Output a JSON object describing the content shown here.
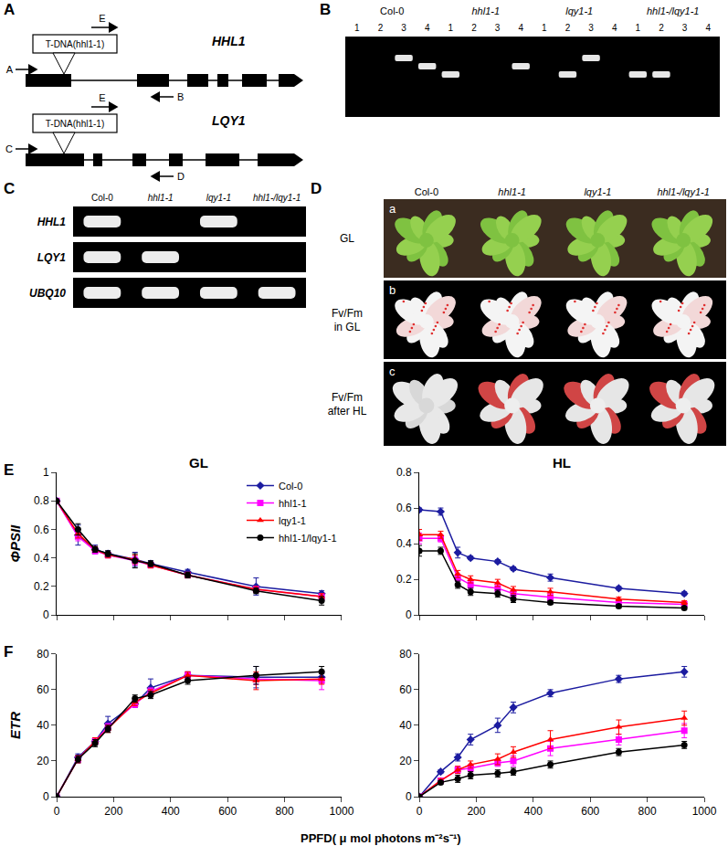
{
  "panels": {
    "A": {
      "label": "A",
      "genes": [
        {
          "name": "HHL1",
          "tdna": "T-DNA(hhl1-1)",
          "primers": [
            "A",
            "B",
            "E"
          ]
        },
        {
          "name": "LQY1",
          "tdna": "T-DNA(hhl1-1)",
          "primers": [
            "C",
            "D",
            "E"
          ]
        }
      ]
    },
    "B": {
      "label": "B",
      "lanes": [
        1,
        2,
        3,
        4
      ],
      "groups": [
        {
          "name": "Col-0",
          "bands": [
            3,
            4
          ]
        },
        {
          "name": "hhl1-1",
          "bands": [
            1,
            4
          ]
        },
        {
          "name": "lqy1-1",
          "bands": [
            2,
            3
          ]
        },
        {
          "name": "hhl1-/lqy1-1",
          "bands": [
            1,
            2
          ]
        }
      ]
    },
    "C": {
      "label": "C",
      "columns": [
        "Col-0",
        "hhl1-1",
        "lqy1-1",
        "hhl1-/lqy1-1"
      ],
      "rows": [
        {
          "name": "HHL1",
          "present": [
            true,
            false,
            true,
            false
          ]
        },
        {
          "name": "LQY1",
          "present": [
            true,
            true,
            false,
            false
          ]
        },
        {
          "name": "UBQ10",
          "present": [
            true,
            true,
            true,
            true
          ]
        }
      ]
    },
    "D": {
      "label": "D",
      "columns": [
        "Col-0",
        "hhl1-1",
        "lqy1-1",
        "hhl1-/lqy1-1"
      ],
      "rows": [
        {
          "letter": "a",
          "label": [
            "GL"
          ]
        },
        {
          "letter": "b",
          "label": [
            "Fv/Fm",
            "in GL"
          ]
        },
        {
          "letter": "c",
          "label": [
            "Fv/Fm",
            "after HL"
          ]
        }
      ]
    }
  },
  "figure": {
    "x_label": "PPFD( μ mol photons m⁻²s⁻¹)"
  },
  "chart_data": [
    {
      "panel": "E",
      "type": "line",
      "title": "GL",
      "ylabel": "ΦPSII",
      "x": [
        0,
        75,
        135,
        180,
        275,
        330,
        460,
        700,
        930
      ],
      "xlim": [
        0,
        1000
      ],
      "xticks": [
        0,
        200,
        400,
        600,
        800,
        1000
      ],
      "ylim": [
        0,
        1
      ],
      "yticks": [
        0,
        0.2,
        0.4,
        0.6,
        0.8,
        1
      ],
      "grid": false,
      "legend": "upper right",
      "tick_labels": "y",
      "series": [
        {
          "name": "Col-0",
          "color": "#1c1ca0",
          "marker": "diamond",
          "line_style": "solid",
          "values": [
            0.8,
            0.56,
            0.46,
            0.43,
            0.39,
            0.36,
            0.3,
            0.2,
            0.15
          ],
          "errors": [
            0.01,
            0.07,
            0.03,
            0.02,
            0.05,
            0.02,
            0.02,
            0.06,
            0.02
          ]
        },
        {
          "name": "hhl1-1",
          "color": "#ff00ff",
          "marker": "square",
          "line_style": "solid",
          "values": [
            0.8,
            0.55,
            0.45,
            0.42,
            0.38,
            0.35,
            0.28,
            0.18,
            0.13
          ],
          "errors": [
            0.01,
            0.03,
            0.02,
            0.02,
            0.03,
            0.02,
            0.02,
            0.02,
            0.02
          ]
        },
        {
          "name": "lqy1-1",
          "color": "#ff0000",
          "marker": "triangle",
          "line_style": "solid",
          "values": [
            0.8,
            0.57,
            0.46,
            0.42,
            0.39,
            0.35,
            0.28,
            0.18,
            0.13
          ],
          "errors": [
            0.01,
            0.03,
            0.02,
            0.02,
            0.03,
            0.02,
            0.02,
            0.02,
            0.02
          ]
        },
        {
          "name": "hhl1-1/lqy1-1",
          "color": "#000000",
          "marker": "circle",
          "line_style": "solid",
          "values": [
            0.8,
            0.6,
            0.46,
            0.43,
            0.38,
            0.36,
            0.28,
            0.17,
            0.1
          ],
          "errors": [
            0.01,
            0.04,
            0.02,
            0.02,
            0.05,
            0.02,
            0.02,
            0.02,
            0.03
          ]
        }
      ]
    },
    {
      "panel": "E",
      "type": "line",
      "title": "HL",
      "x": [
        0,
        75,
        135,
        180,
        275,
        330,
        460,
        700,
        930
      ],
      "xlim": [
        0,
        1000
      ],
      "xticks": [
        0,
        200,
        400,
        600,
        800,
        1000
      ],
      "ylim": [
        0,
        0.8
      ],
      "yticks": [
        0,
        0.2,
        0.4,
        0.6,
        0.8
      ],
      "grid": false,
      "tick_labels": "y",
      "series": [
        {
          "name": "Col-0",
          "color": "#1c1ca0",
          "marker": "diamond",
          "line_style": "solid",
          "values": [
            0.59,
            0.58,
            0.35,
            0.32,
            0.3,
            0.26,
            0.21,
            0.15,
            0.12
          ],
          "errors": [
            0.01,
            0.02,
            0.03,
            0.01,
            0.01,
            0.01,
            0.02,
            0.01,
            0.01
          ]
        },
        {
          "name": "hhl1-1",
          "color": "#ff00ff",
          "marker": "square",
          "line_style": "solid",
          "values": [
            0.43,
            0.43,
            0.21,
            0.17,
            0.15,
            0.12,
            0.1,
            0.07,
            0.06
          ],
          "errors": [
            0.03,
            0.02,
            0.02,
            0.02,
            0.02,
            0.02,
            0.02,
            0.01,
            0.01
          ]
        },
        {
          "name": "lqy1-1",
          "color": "#ff0000",
          "marker": "triangle",
          "line_style": "solid",
          "values": [
            0.45,
            0.45,
            0.23,
            0.2,
            0.18,
            0.14,
            0.13,
            0.09,
            0.07
          ],
          "errors": [
            0.03,
            0.02,
            0.02,
            0.02,
            0.02,
            0.02,
            0.02,
            0.01,
            0.01
          ]
        },
        {
          "name": "hhl1-1/lqy1-1",
          "color": "#000000",
          "marker": "circle",
          "line_style": "solid",
          "values": [
            0.36,
            0.36,
            0.17,
            0.13,
            0.12,
            0.09,
            0.07,
            0.05,
            0.04
          ],
          "errors": [
            0.03,
            0.02,
            0.02,
            0.02,
            0.02,
            0.02,
            0.01,
            0.01,
            0.01
          ]
        }
      ]
    },
    {
      "panel": "F",
      "type": "line",
      "ylabel": "ETR",
      "x": [
        0,
        75,
        135,
        180,
        275,
        330,
        460,
        700,
        930
      ],
      "xlim": [
        0,
        1000
      ],
      "xticks": [
        0,
        200,
        400,
        600,
        800,
        1000
      ],
      "ylim": [
        0,
        80
      ],
      "yticks": [
        0,
        20,
        40,
        60,
        80
      ],
      "grid": false,
      "series": [
        {
          "name": "Col-0",
          "color": "#1c1ca0",
          "marker": "diamond",
          "line_style": "solid",
          "values": [
            0,
            22,
            31,
            41,
            52,
            61,
            68,
            67,
            67
          ],
          "errors": [
            0,
            2,
            2,
            4,
            2,
            5,
            2,
            6,
            2
          ]
        },
        {
          "name": "hhl1-1",
          "color": "#ff00ff",
          "marker": "square",
          "line_style": "solid",
          "values": [
            0,
            21,
            31,
            39,
            52,
            59,
            68,
            66,
            65
          ],
          "errors": [
            0,
            2,
            2,
            2,
            2,
            2,
            2,
            3,
            5
          ]
        },
        {
          "name": "lqy1-1",
          "color": "#ff0000",
          "marker": "triangle",
          "line_style": "solid",
          "values": [
            0,
            21,
            31,
            38,
            53,
            58,
            68,
            65,
            66
          ],
          "errors": [
            0,
            2,
            2,
            2,
            2,
            2,
            2,
            5,
            3
          ]
        },
        {
          "name": "hhl1-1/lqy1-1",
          "color": "#000000",
          "marker": "circle",
          "line_style": "solid",
          "values": [
            0,
            21,
            30,
            38,
            55,
            57,
            65,
            68,
            70
          ],
          "errors": [
            0,
            2,
            2,
            2,
            2,
            2,
            2,
            5,
            3
          ]
        }
      ]
    },
    {
      "panel": "F",
      "type": "line",
      "x": [
        0,
        75,
        135,
        180,
        275,
        330,
        460,
        700,
        930
      ],
      "xlim": [
        0,
        1000
      ],
      "xticks": [
        0,
        200,
        400,
        600,
        800,
        1000
      ],
      "ylim": [
        0,
        80
      ],
      "yticks": [
        0,
        20,
        40,
        60,
        80
      ],
      "grid": false,
      "series": [
        {
          "name": "Col-0",
          "color": "#1c1ca0",
          "marker": "diamond",
          "line_style": "solid",
          "values": [
            0,
            14,
            22,
            32,
            40,
            50,
            58,
            66,
            70
          ],
          "errors": [
            0,
            1,
            2,
            3,
            4,
            3,
            2,
            2,
            3
          ]
        },
        {
          "name": "hhl1-1",
          "color": "#ff00ff",
          "marker": "square",
          "line_style": "solid",
          "values": [
            0,
            9,
            15,
            16,
            19,
            20,
            27,
            32,
            37
          ],
          "errors": [
            0,
            1,
            2,
            2,
            2,
            3,
            4,
            3,
            4
          ]
        },
        {
          "name": "lqy1-1",
          "color": "#ff0000",
          "marker": "triangle",
          "line_style": "solid",
          "values": [
            0,
            9,
            15,
            18,
            21,
            25,
            32,
            39,
            44
          ],
          "errors": [
            0,
            1,
            2,
            2,
            3,
            3,
            5,
            4,
            4
          ]
        },
        {
          "name": "hhl1-1/lqy1-1",
          "color": "#000000",
          "marker": "circle",
          "line_style": "solid",
          "values": [
            0,
            8,
            10,
            12,
            13,
            14,
            18,
            25,
            29
          ],
          "errors": [
            0,
            1,
            2,
            2,
            2,
            2,
            2,
            2,
            2
          ]
        }
      ]
    }
  ]
}
